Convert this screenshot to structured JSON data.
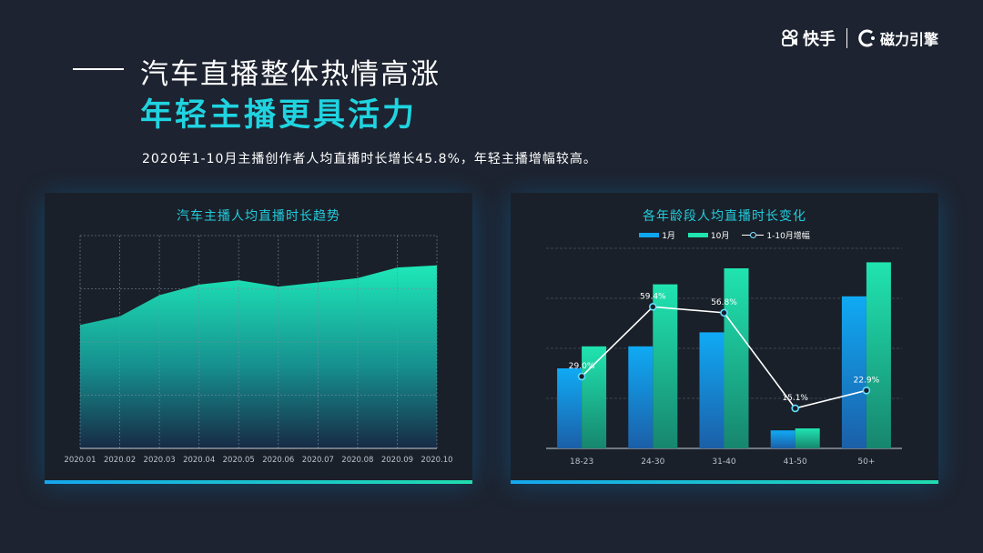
{
  "header": {
    "brand": "快手",
    "engine": "磁力引擎",
    "title_line1": "汽车直播整体热情高涨",
    "title_line2": "年轻主播更具活力",
    "subtitle": "2020年1-10月主播创作者人均直播时长增长45.8%，年轻主播增幅较高。"
  },
  "colors": {
    "background": "#1d2330",
    "panel": "#1a2029",
    "accent_cyan": "#1fd4e0",
    "teal": "#20e4b0",
    "blue": "#0fa6f0"
  },
  "chart_data": [
    {
      "type": "area",
      "title": "汽车主播人均直播时长趋势",
      "categories": [
        "2020.01",
        "2020.02",
        "2020.03",
        "2020.04",
        "2020.05",
        "2020.06",
        "2020.07",
        "2020.08",
        "2020.09",
        "2020.10"
      ],
      "y_estimated_scale": [
        0,
        100
      ],
      "series": [
        {
          "values": [
            58,
            62,
            72,
            77,
            79,
            76,
            78,
            80,
            85,
            86
          ]
        }
      ],
      "grid": true,
      "y_tick_labels_shown": false
    },
    {
      "type": "bar",
      "title": "各年龄段人均直播时长变化",
      "categories": [
        "18-23",
        "24-30",
        "31-40",
        "41-50",
        "50+"
      ],
      "legend_position": "top",
      "y_estimated_scale": [
        0,
        100
      ],
      "series": [
        {
          "name": "1月",
          "type": "bar",
          "values": [
            40,
            51,
            58,
            9,
            76
          ]
        },
        {
          "name": "10月",
          "type": "bar",
          "values": [
            51,
            82,
            90,
            10,
            93
          ]
        },
        {
          "name": "1-10月增幅",
          "type": "line",
          "values": [
            29.0,
            59.4,
            56.8,
            15.1,
            22.9
          ],
          "labels": [
            "29.0%",
            "59.4%",
            "56.8%",
            "15.1%",
            "22.9%"
          ]
        }
      ],
      "grid": true
    }
  ]
}
